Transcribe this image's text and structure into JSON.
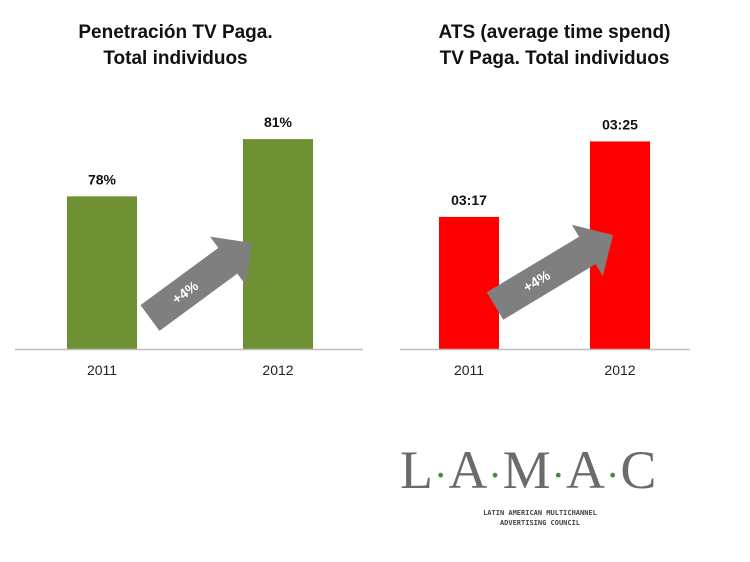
{
  "chart_data": [
    {
      "type": "bar",
      "title_line1": "Penetración TV Paga.",
      "title_line2": "Total individuos",
      "categories": [
        "2011",
        "2012"
      ],
      "values": [
        78,
        81
      ],
      "value_labels": [
        "78%",
        "81%"
      ],
      "annotation": "+4%",
      "bar_color": "#6f9134",
      "ylim": [
        70,
        82
      ]
    },
    {
      "type": "bar",
      "title_line1": "ATS (average time spend)",
      "title_line2": "TV Paga. Total individuos",
      "categories": [
        "2011",
        "2012"
      ],
      "values": [
        197,
        205
      ],
      "value_labels": [
        "03:17",
        "03:25"
      ],
      "annotation": "+4%",
      "bar_color": "#ff0000",
      "ylim": [
        183,
        206
      ]
    }
  ],
  "logo": {
    "letters": [
      "L",
      "A",
      "M",
      "A",
      "C"
    ],
    "subtitle_line1": "LATIN AMERICAN MULTICHANNEL",
    "subtitle_line2": "ADVERTISING COUNCIL",
    "text_color": "#6b6b6b",
    "dot_color": "#3e8e3e"
  }
}
